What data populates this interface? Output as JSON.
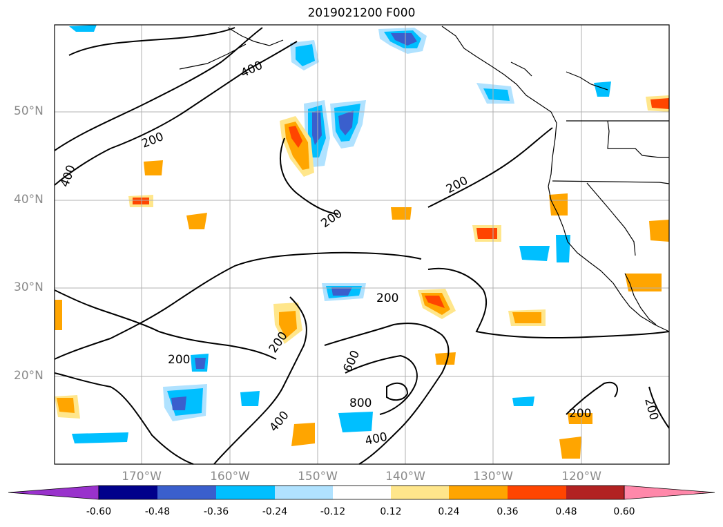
{
  "title": "2019021200 F000",
  "lat_labels": [
    "50°N",
    "40°N",
    "30°N",
    "20°N"
  ],
  "lon_labels": [
    "170°W",
    "160°W",
    "150°W",
    "140°W",
    "130°W",
    "120°W"
  ],
  "contour_labels": [
    "400",
    "200",
    "400",
    "200",
    "200",
    "200",
    "200",
    "200",
    "600",
    "800",
    "400",
    "400",
    "200",
    "200"
  ],
  "colorbar": {
    "ticks": [
      "-0.60",
      "-0.48",
      "-0.36",
      "-0.24",
      "-0.12",
      "0.12",
      "0.24",
      "0.36",
      "0.48",
      "0.60"
    ],
    "colors": [
      "#9932cc",
      "#00008b",
      "#3a5fcd",
      "#00bfff",
      "#b0e2ff",
      "#ffffff",
      "#ffe68b",
      "#ffa500",
      "#ff4500",
      "#b22222",
      "#ff88aa"
    ]
  }
}
